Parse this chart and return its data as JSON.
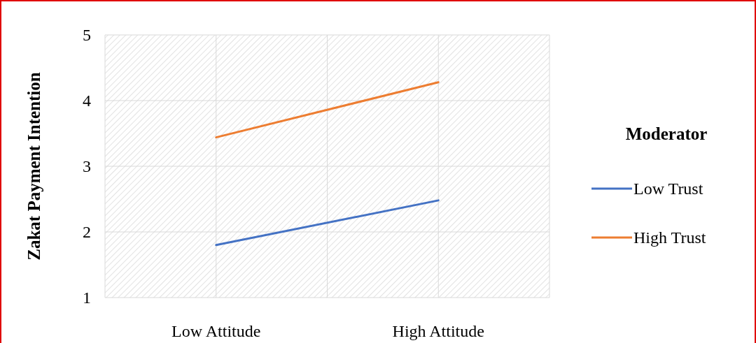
{
  "chart_data": {
    "type": "line",
    "ylabel": "Zakat Payment Intention",
    "legend_title": "Moderator",
    "categories": [
      "Low Attitude",
      "High Attitude"
    ],
    "series": [
      {
        "name": "Low Trust",
        "color": "#4472c4",
        "values": [
          1.8,
          2.48
        ]
      },
      {
        "name": "High Trust",
        "color": "#ed7d31",
        "values": [
          3.44,
          4.28
        ]
      }
    ],
    "ylim": [
      1,
      5
    ],
    "yticks": [
      1,
      2,
      3,
      4,
      5
    ],
    "grid": true,
    "legend": "right",
    "marker": "none",
    "line_style": "solid"
  }
}
